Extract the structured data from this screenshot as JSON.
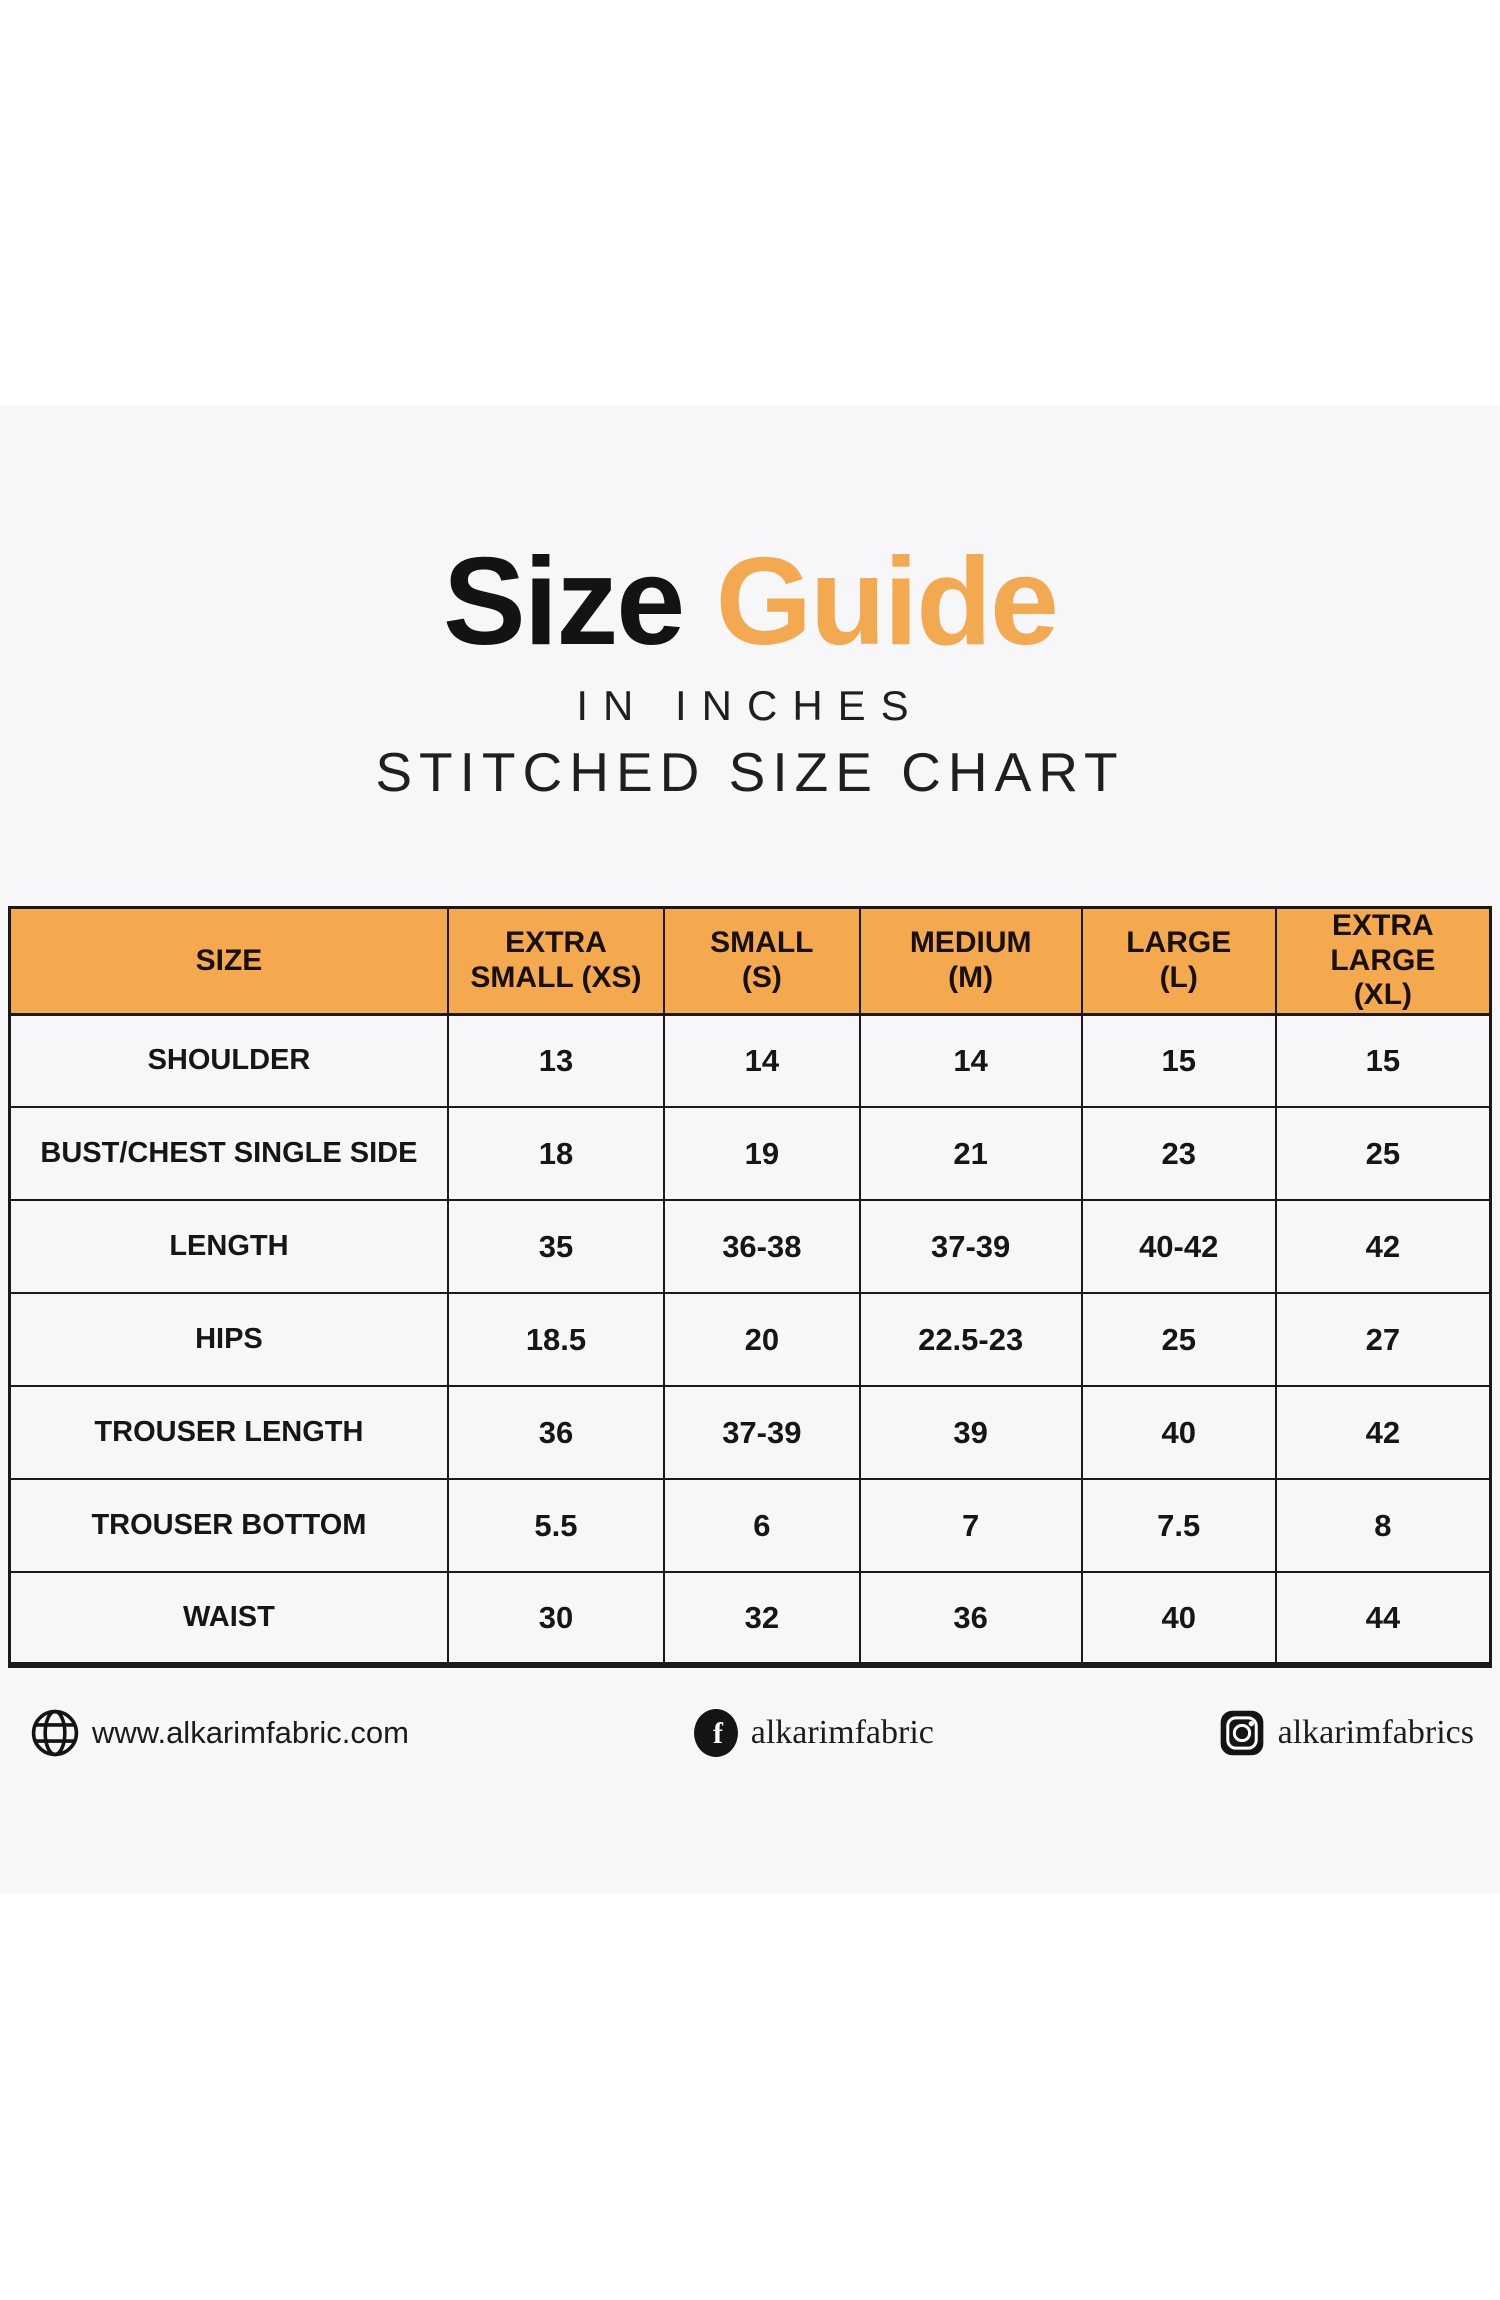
{
  "page": {
    "background_color": "#ffffff",
    "band_color": "#f7f7f9"
  },
  "title": {
    "part1": "Size",
    "part2": "Guide",
    "part1_color": "#131313",
    "part2_color": "#f2a94f",
    "subtitle1": "IN INCHES",
    "subtitle2": "STITCHED SIZE CHART"
  },
  "table": {
    "header_bg": "#f4a94e",
    "border_color": "#1a1a1a",
    "columns": [
      {
        "lines": [
          "SIZE"
        ]
      },
      {
        "lines": [
          "EXTRA",
          "SMALL (XS)"
        ]
      },
      {
        "lines": [
          "SMALL",
          "(S)"
        ]
      },
      {
        "lines": [
          "MEDIUM",
          "(M)"
        ]
      },
      {
        "lines": [
          "LARGE",
          "(L)"
        ]
      },
      {
        "lines": [
          "EXTRA LARGE",
          "(XL)"
        ]
      }
    ],
    "rows": [
      {
        "label": "SHOULDER",
        "values": [
          "13",
          "14",
          "14",
          "15",
          "15"
        ]
      },
      {
        "label": "BUST/CHEST SINGLE SIDE",
        "values": [
          "18",
          "19",
          "21",
          "23",
          "25"
        ]
      },
      {
        "label": "LENGTH",
        "values": [
          "35",
          "36-38",
          "37-39",
          "40-42",
          "42"
        ]
      },
      {
        "label": "HIPS",
        "values": [
          "18.5",
          "20",
          "22.5-23",
          "25",
          "27"
        ]
      },
      {
        "label": "TROUSER LENGTH",
        "values": [
          "36",
          "37-39",
          "39",
          "40",
          "42"
        ]
      },
      {
        "label": "TROUSER BOTTOM",
        "values": [
          "5.5",
          "6",
          "7",
          "7.5",
          "8"
        ]
      },
      {
        "label": "WAIST",
        "values": [
          "30",
          "32",
          "36",
          "40",
          "44"
        ]
      }
    ]
  },
  "footer": {
    "website": {
      "icon": "globe-icon",
      "text": "www.alkarimfabric.com"
    },
    "facebook": {
      "icon": "facebook-icon",
      "text": "alkarimfabric"
    },
    "instagram": {
      "icon": "instagram-icon",
      "text": "alkarimfabrics"
    }
  },
  "chart_data": {
    "type": "table",
    "title": "Size Guide in inches - Stitched size chart",
    "columns": [
      "SIZE",
      "EXTRA SMALL (XS)",
      "SMALL (S)",
      "MEDIUM (M)",
      "LARGE (L)",
      "EXTRA LARGE (XL)"
    ],
    "rows": [
      [
        "SHOULDER",
        "13",
        "14",
        "14",
        "15",
        "15"
      ],
      [
        "BUST/CHEST SINGLE SIDE",
        "18",
        "19",
        "21",
        "23",
        "25"
      ],
      [
        "LENGTH",
        "35",
        "36-38",
        "37-39",
        "40-42",
        "42"
      ],
      [
        "HIPS",
        "18.5",
        "20",
        "22.5-23",
        "25",
        "27"
      ],
      [
        "TROUSER LENGTH",
        "36",
        "37-39",
        "39",
        "40",
        "42"
      ],
      [
        "TROUSER BOTTOM",
        "5.5",
        "6",
        "7",
        "7.5",
        "8"
      ],
      [
        "WAIST",
        "30",
        "32",
        "36",
        "40",
        "44"
      ]
    ]
  }
}
